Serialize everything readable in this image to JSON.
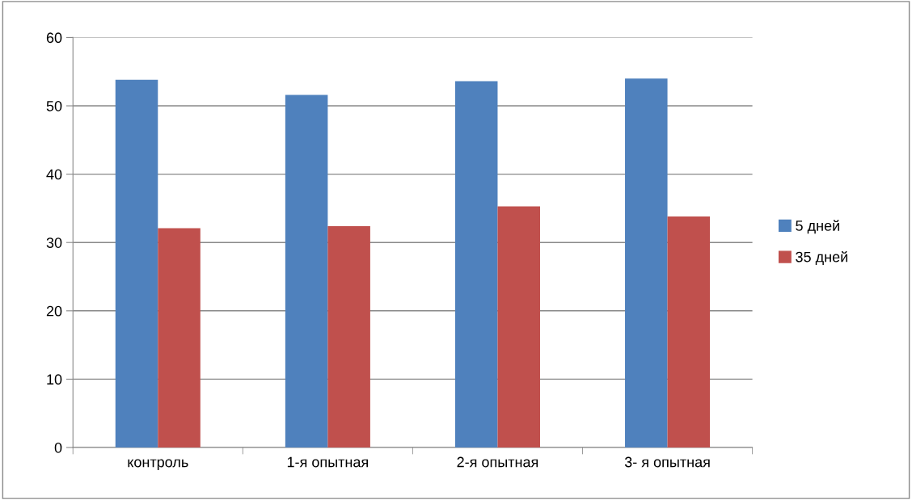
{
  "chart_data": {
    "type": "bar",
    "categories": [
      "контроль",
      "1-я опытная",
      "2-я опытная",
      "3- я опытная"
    ],
    "series": [
      {
        "name": "5 дней",
        "color": "#4f81bd",
        "values": [
          53.8,
          51.6,
          53.6,
          54.0
        ]
      },
      {
        "name": "35 дней",
        "color": "#c0504d",
        "values": [
          32.1,
          32.4,
          35.3,
          33.8
        ]
      }
    ],
    "ylim": [
      0,
      60
    ],
    "yticks": [
      0,
      10,
      20,
      30,
      40,
      50,
      60
    ],
    "grid": "y",
    "legend": "right"
  }
}
